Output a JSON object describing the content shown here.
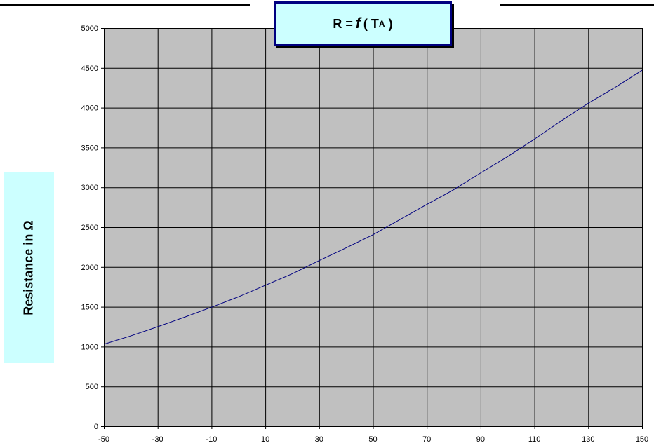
{
  "chart_data": {
    "type": "line",
    "title": {
      "lhs": "R =",
      "func": "f",
      "open": "( T",
      "subscript": "A",
      "close": ")"
    },
    "xlabel": "",
    "ylabel": "Resistance in Ω",
    "xlim": [
      -50,
      150
    ],
    "ylim": [
      0,
      5000
    ],
    "x_ticks": [
      -50,
      -30,
      -10,
      10,
      30,
      50,
      70,
      90,
      110,
      130,
      150
    ],
    "y_ticks": [
      0,
      500,
      1000,
      1500,
      2000,
      2500,
      3000,
      3500,
      4000,
      4500,
      5000
    ],
    "x_grid_step": 20,
    "y_grid_step": 500,
    "grid": true,
    "plot_background": "#c0c0c0",
    "line_color": "#000080",
    "series": [
      {
        "x": [
          -50,
          -40,
          -30,
          -20,
          -10,
          0,
          10,
          20,
          30,
          40,
          50,
          60,
          70,
          80,
          90,
          100,
          110,
          120,
          130,
          140,
          150
        ],
        "y": [
          1030,
          1135,
          1250,
          1370,
          1495,
          1625,
          1770,
          1915,
          2080,
          2240,
          2405,
          2595,
          2785,
          2970,
          3180,
          3385,
          3605,
          3835,
          4055,
          4255,
          4470
        ]
      }
    ]
  }
}
